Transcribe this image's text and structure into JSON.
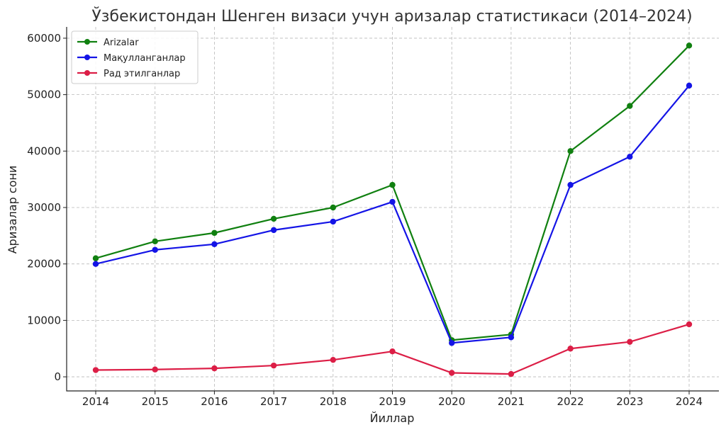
{
  "chart_data": {
    "type": "line",
    "title": "Ўзбекистондан Шенген визаси учун аризалар статистикаси (2014–2024)",
    "xlabel": "Йиллар",
    "ylabel": "Аризалар сони",
    "x": [
      "2014",
      "2015",
      "2016",
      "2017",
      "2018",
      "2019",
      "2020",
      "2021",
      "2022",
      "2023",
      "2024"
    ],
    "ylim": [
      -2500,
      62000
    ],
    "yticks": [
      0,
      10000,
      20000,
      30000,
      40000,
      50000,
      60000
    ],
    "ytick_labels": [
      "0",
      "10000",
      "20000",
      "30000",
      "40000",
      "50000",
      "60000"
    ],
    "grid": true,
    "legend_position": "top-left",
    "series": [
      {
        "name": "Arizalar",
        "color": "#108010",
        "values": [
          21000,
          24000,
          25500,
          28000,
          30000,
          34000,
          6500,
          7500,
          40000,
          48000,
          58700
        ]
      },
      {
        "name": "Мақулланганлар",
        "color": "#1414e6",
        "values": [
          20000,
          22500,
          23500,
          26000,
          27500,
          31000,
          6000,
          7000,
          34000,
          39000,
          51600
        ]
      },
      {
        "name": "Рад этилганлар",
        "color": "#dc1e46",
        "values": [
          1200,
          1300,
          1500,
          2000,
          3000,
          4500,
          700,
          500,
          5000,
          6200,
          9300
        ]
      }
    ]
  }
}
